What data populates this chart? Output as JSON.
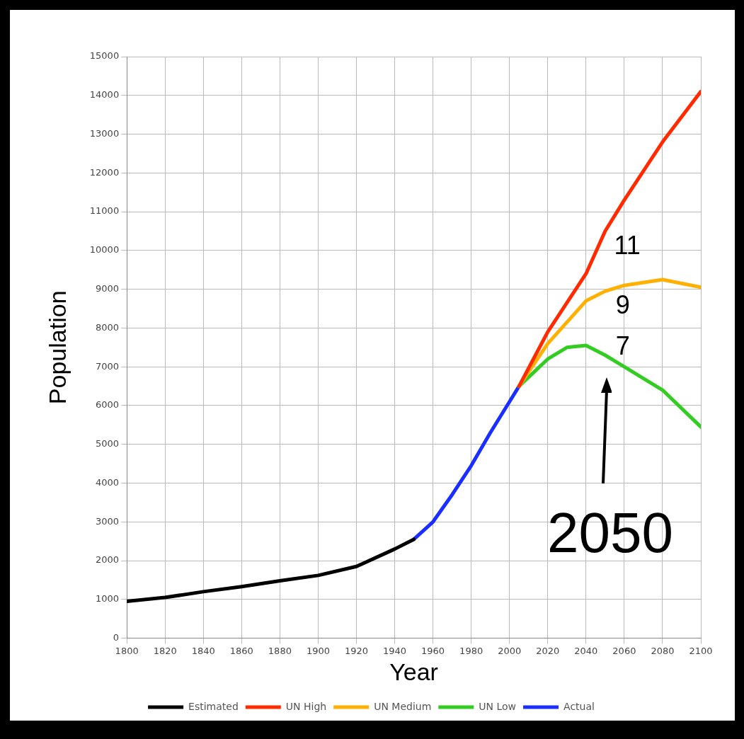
{
  "chart_data": {
    "type": "line",
    "xlabel": "Year",
    "ylabel": "Population",
    "xlim": [
      1800,
      2100
    ],
    "xticks": [
      1800,
      1820,
      1840,
      1860,
      1880,
      1900,
      1920,
      1940,
      1960,
      1980,
      2000,
      2020,
      2040,
      2060,
      2080,
      2100
    ],
    "ylim": [
      0,
      15000
    ],
    "yticks": [
      0,
      1000,
      2000,
      3000,
      4000,
      5000,
      6000,
      7000,
      8000,
      9000,
      10000,
      11000,
      12000,
      13000,
      14000,
      15000
    ],
    "grid": true,
    "legend": "bottom",
    "series": [
      {
        "name": "Estimated",
        "color": "#000000",
        "x": [
          1800,
          1820,
          1840,
          1860,
          1880,
          1900,
          1920,
          1940,
          1950
        ],
        "values": [
          950,
          1050,
          1200,
          1330,
          1480,
          1620,
          1850,
          2300,
          2550
        ]
      },
      {
        "name": "UN High",
        "color": "#ff2a00",
        "x": [
          2005,
          2020,
          2040,
          2050,
          2060,
          2080,
          2100
        ],
        "values": [
          6500,
          7900,
          9400,
          10500,
          11300,
          12800,
          14100
        ]
      },
      {
        "name": "UN Medium",
        "color": "#ffb000",
        "x": [
          2005,
          2020,
          2040,
          2050,
          2060,
          2080,
          2100
        ],
        "values": [
          6500,
          7600,
          8700,
          8950,
          9100,
          9250,
          9050
        ]
      },
      {
        "name": "UN Low",
        "color": "#33cc22",
        "x": [
          2005,
          2020,
          2030,
          2040,
          2050,
          2060,
          2080,
          2100
        ],
        "values": [
          6500,
          7200,
          7500,
          7550,
          7300,
          7000,
          6400,
          5450
        ]
      },
      {
        "name": "Actual",
        "color": "#1a2eff",
        "x": [
          1950,
          1960,
          1970,
          1980,
          1990,
          2000,
          2005
        ],
        "values": [
          2550,
          3000,
          3700,
          4450,
          5300,
          6100,
          6500
        ]
      }
    ],
    "annotations": [
      "11",
      "9",
      "7",
      "2050"
    ]
  }
}
